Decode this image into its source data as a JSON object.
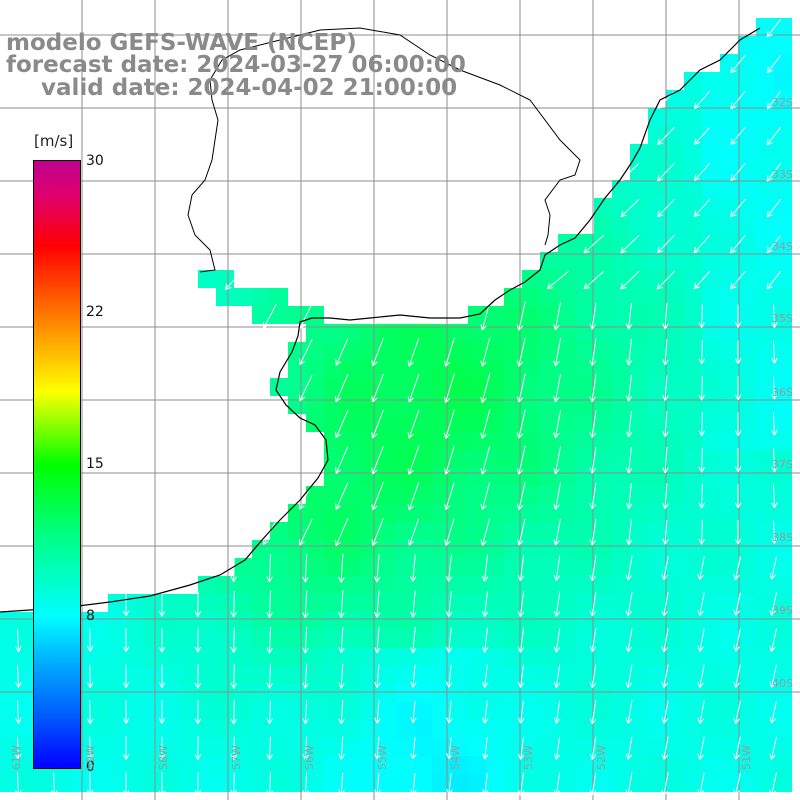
{
  "title": {
    "line1": "modelo GEFS-WAVE (NCEP)",
    "line2": "forecast date: 2024-03-27 06:00:00",
    "line3": "valid date: 2024-04-02 21:00:00"
  },
  "colorbar": {
    "unit": "[m/s]",
    "ticks": [
      "30",
      "22",
      "15",
      "8",
      "0"
    ],
    "range": [
      0,
      30
    ]
  },
  "colors": {
    "land": "#ffffff",
    "grid": "#8c8c8c",
    "coast": "#000000",
    "arrow": "#ffffff",
    "title_text": "#8a8a8a"
  },
  "map": {
    "lon_labels": [
      "61W",
      "59W",
      "58W",
      "57W",
      "56W",
      "55W",
      "54W",
      "53W",
      "52W",
      "51W"
    ],
    "lat_labels": [
      "32S",
      "33S",
      "34S",
      "35S",
      "36S",
      "37S",
      "38S",
      "39S",
      "40S"
    ],
    "field": "wind speed with direction arrows",
    "dominant_direction": "southwest-southward",
    "speed_range_ms": [
      5,
      13
    ]
  }
}
